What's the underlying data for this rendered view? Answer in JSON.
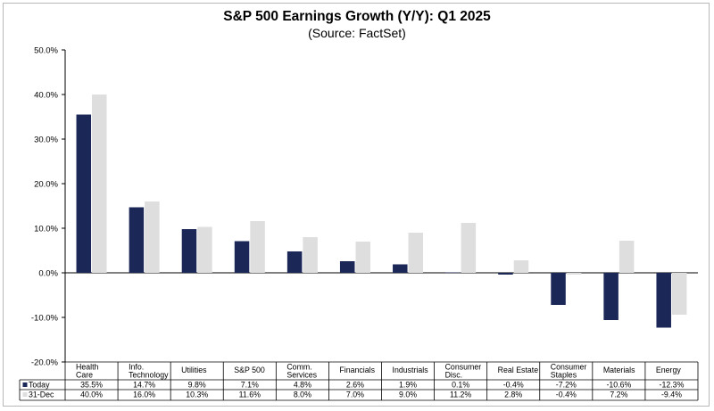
{
  "chart_data": {
    "type": "bar",
    "title": "S&P 500 Earnings Growth (Y/Y): Q1 2025",
    "subtitle": "(Source: FactSet)",
    "categories": [
      [
        "Health",
        "Care"
      ],
      [
        "Info.",
        "Technology"
      ],
      [
        "Utilities"
      ],
      [
        "S&P 500"
      ],
      [
        "Comm.",
        "Services"
      ],
      [
        "Financials"
      ],
      [
        "Industrials"
      ],
      [
        "Consumer",
        "Disc."
      ],
      [
        "Real Estate"
      ],
      [
        "Consumer",
        "Staples"
      ],
      [
        "Materials"
      ],
      [
        "Energy"
      ]
    ],
    "series": [
      {
        "name": "Today",
        "color": "#1b2757",
        "values": [
          35.5,
          14.7,
          9.8,
          7.1,
          4.8,
          2.6,
          1.9,
          0.1,
          -0.4,
          -7.2,
          -10.6,
          -12.3
        ],
        "labels": [
          "35.5%",
          "14.7%",
          "9.8%",
          "7.1%",
          "4.8%",
          "2.6%",
          "1.9%",
          "0.1%",
          "-0.4%",
          "-7.2%",
          "-10.6%",
          "-12.3%"
        ]
      },
      {
        "name": "31-Dec",
        "color": "#dedede",
        "values": [
          40.0,
          16.0,
          10.3,
          11.6,
          8.0,
          7.0,
          9.0,
          11.2,
          2.8,
          -0.4,
          7.2,
          -9.4
        ],
        "labels": [
          "40.0%",
          "16.0%",
          "10.3%",
          "11.6%",
          "8.0%",
          "7.0%",
          "9.0%",
          "11.2%",
          "2.8%",
          "-0.4%",
          "7.2%",
          "-9.4%"
        ]
      }
    ],
    "ylim": [
      -20,
      50
    ],
    "yticks": [
      50,
      40,
      30,
      20,
      10,
      0,
      -10,
      -20
    ],
    "ytick_labels": [
      "50.0%",
      "40.0%",
      "30.0%",
      "20.0%",
      "10.0%",
      "0.0%",
      "-10.0%",
      "-20.0%"
    ],
    "xlabel": "",
    "ylabel": "",
    "grid": false,
    "legend": "data-table-left"
  }
}
